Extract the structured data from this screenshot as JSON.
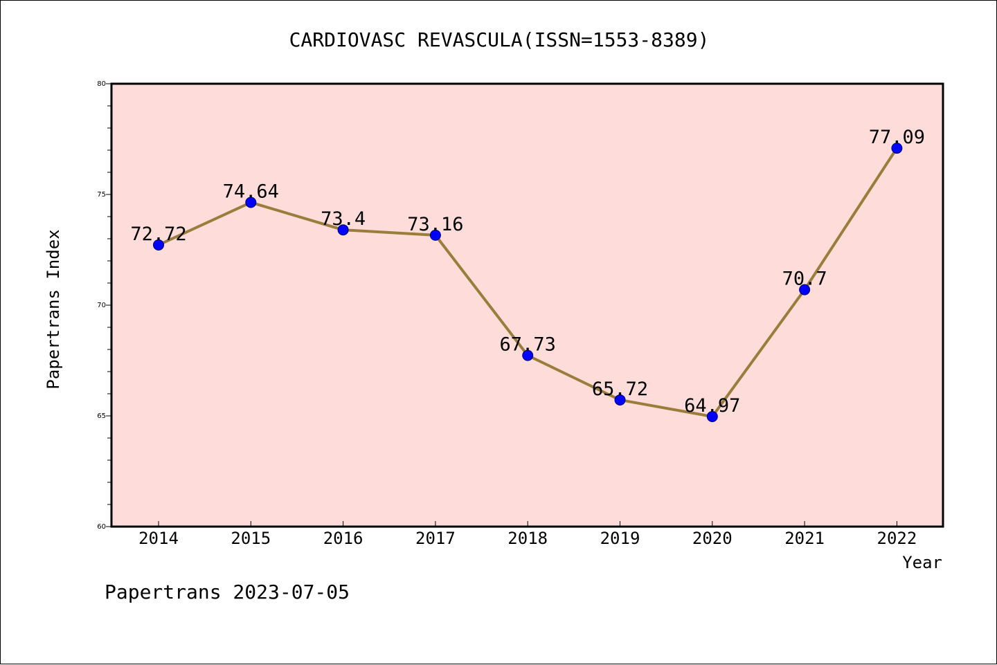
{
  "chart_data": {
    "type": "line",
    "title": "CARDIOVASC REVASCULA(ISSN=1553-8389)",
    "xlabel": "Year",
    "ylabel": "Papertrans Index",
    "footer": "Papertrans 2023-07-05",
    "categories": [
      "2014",
      "2015",
      "2016",
      "2017",
      "2018",
      "2019",
      "2020",
      "2021",
      "2022"
    ],
    "series": [
      {
        "values": [
          72.72,
          74.64,
          73.4,
          73.16,
          67.73,
          65.72,
          64.97,
          70.7,
          77.09
        ],
        "labels": [
          "72.72",
          "74.64",
          "73.4",
          "73.16",
          "67.73",
          "65.72",
          "64.97",
          "70.7",
          "77.09"
        ]
      }
    ],
    "ylim": [
      60,
      80
    ],
    "yticks": [
      "60",
      "65",
      "70",
      "75",
      "80"
    ],
    "grid": false,
    "legend": "none",
    "colors": {
      "plot_background": "#fddcd9",
      "line": "#9a7d3a",
      "marker": "#0000ff"
    }
  }
}
